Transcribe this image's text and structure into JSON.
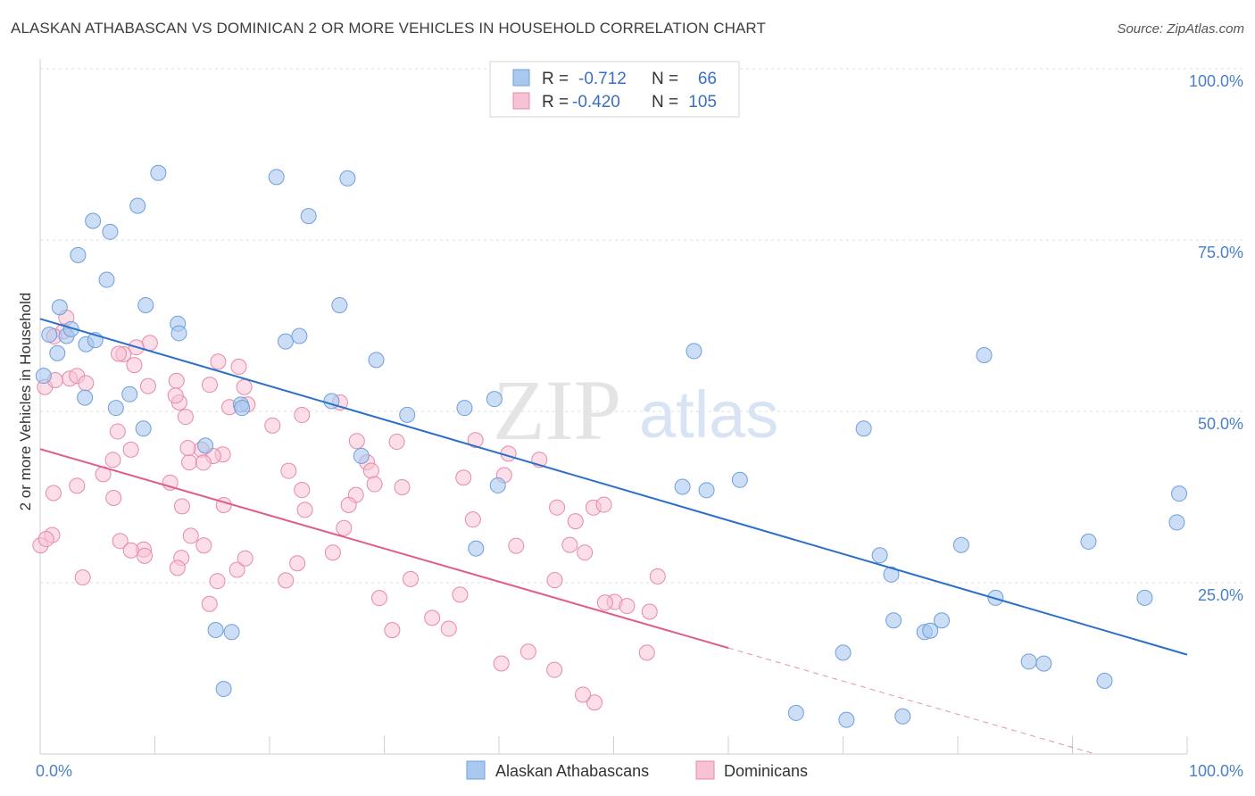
{
  "title": "ALASKAN ATHABASCAN VS DOMINICAN 2 OR MORE VEHICLES IN HOUSEHOLD CORRELATION CHART",
  "source": "Source: ZipAtlas.com",
  "watermark": {
    "zip": "ZIP",
    "atlas": "atlas"
  },
  "chart_data": {
    "type": "scatter",
    "xlabel": "",
    "ylabel": "2 or more Vehicles in Household",
    "xlim": [
      0,
      100
    ],
    "ylim": [
      0,
      100
    ],
    "x_tick_labels": [
      {
        "value": 0,
        "label": "0.0%"
      },
      {
        "value": 100,
        "label": "100.0%"
      }
    ],
    "y_tick_labels": [
      {
        "value": 100,
        "label": "100.0%"
      },
      {
        "value": 75,
        "label": "75.0%"
      },
      {
        "value": 50,
        "label": "50.0%"
      },
      {
        "value": 25,
        "label": "25.0%"
      }
    ],
    "legend": {
      "placement": "top-center",
      "rows": [
        {
          "r_label": "R =",
          "r_value": "-0.712",
          "n_label": "N =",
          "n_value": "66"
        },
        {
          "r_label": "R =",
          "r_value": "-0.420",
          "n_label": "N =",
          "n_value": "105"
        }
      ]
    },
    "series": [
      {
        "name": "Alaskan Athabascans",
        "color": "#a9c8f0",
        "stroke": "#6f9fd8",
        "line_color": "#2a6fc9",
        "trend": {
          "x0": 0,
          "y0": 63.5,
          "x1": 100,
          "y1": 14.5,
          "dashed_from": null
        },
        "points": [
          [
            0.3,
            55.2
          ],
          [
            0.8,
            61.2
          ],
          [
            1.5,
            58.5
          ],
          [
            1.7,
            65.2
          ],
          [
            2.3,
            61.0
          ],
          [
            2.7,
            62.0
          ],
          [
            3.3,
            72.8
          ],
          [
            3.9,
            52.0
          ],
          [
            4.0,
            59.8
          ],
          [
            4.6,
            77.8
          ],
          [
            4.8,
            60.4
          ],
          [
            5.8,
            69.2
          ],
          [
            6.1,
            76.2
          ],
          [
            6.6,
            50.5
          ],
          [
            7.8,
            52.5
          ],
          [
            8.5,
            80.0
          ],
          [
            9.0,
            47.5
          ],
          [
            9.2,
            65.5
          ],
          [
            10.3,
            84.8
          ],
          [
            12.0,
            62.8
          ],
          [
            12.1,
            61.4
          ],
          [
            14.4,
            45.0
          ],
          [
            15.3,
            18.1
          ],
          [
            16.7,
            17.8
          ],
          [
            16.0,
            9.5
          ],
          [
            17.5,
            51.0
          ],
          [
            17.6,
            50.5
          ],
          [
            20.6,
            84.2
          ],
          [
            21.4,
            60.2
          ],
          [
            22.6,
            61.0
          ],
          [
            23.4,
            78.5
          ],
          [
            25.4,
            51.5
          ],
          [
            26.1,
            65.5
          ],
          [
            26.8,
            84.0
          ],
          [
            28.0,
            43.5
          ],
          [
            29.3,
            57.5
          ],
          [
            32.0,
            49.5
          ],
          [
            37.0,
            50.5
          ],
          [
            38.0,
            30.0
          ],
          [
            39.6,
            51.8
          ],
          [
            39.9,
            39.2
          ],
          [
            56.0,
            39.0
          ],
          [
            57.0,
            58.8
          ],
          [
            58.1,
            38.5
          ],
          [
            61.0,
            40.0
          ],
          [
            65.9,
            6.0
          ],
          [
            70.0,
            14.8
          ],
          [
            70.3,
            5.0
          ],
          [
            71.8,
            47.5
          ],
          [
            73.2,
            29.0
          ],
          [
            74.2,
            26.2
          ],
          [
            74.4,
            19.5
          ],
          [
            75.2,
            5.5
          ],
          [
            77.1,
            17.8
          ],
          [
            77.6,
            18.0
          ],
          [
            78.6,
            19.5
          ],
          [
            80.3,
            30.5
          ],
          [
            82.3,
            58.2
          ],
          [
            83.3,
            22.8
          ],
          [
            86.2,
            13.5
          ],
          [
            87.5,
            13.2
          ],
          [
            91.4,
            31.0
          ],
          [
            92.8,
            10.7
          ],
          [
            96.3,
            22.8
          ],
          [
            99.1,
            33.8
          ],
          [
            99.3,
            38.0
          ]
        ]
      },
      {
        "name": "Dominicans",
        "color": "#f7c3d4",
        "stroke": "#e58aa8",
        "line_color": "#e05d8b",
        "trend": {
          "x0": 0,
          "y0": 44.5,
          "x1": 92,
          "y1": 0,
          "dashed_from": 60
        }
      }
    ]
  },
  "bottom_legend": [
    {
      "label": "Alaskan Athabascans",
      "color": "#a9c8f0",
      "stroke": "#6f9fd8"
    },
    {
      "label": "Dominicans",
      "color": "#f7c3d4",
      "stroke": "#e58aa8"
    }
  ]
}
